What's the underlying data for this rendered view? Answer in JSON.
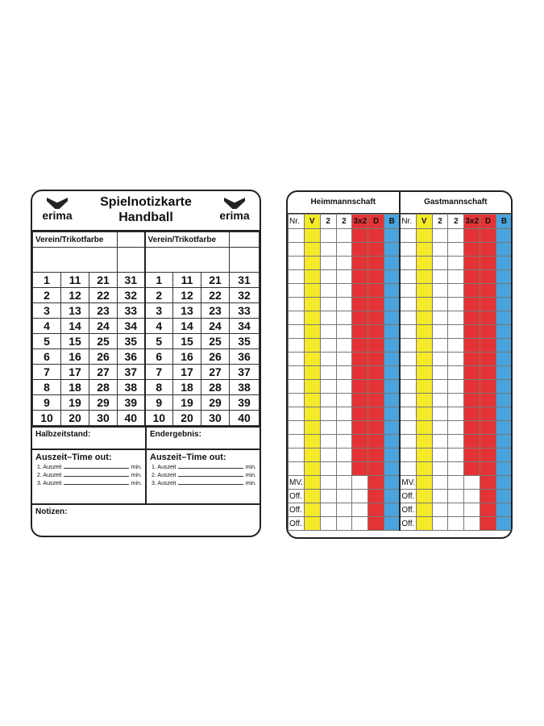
{
  "left_card": {
    "title_line1": "Spielnotizkarte",
    "title_line2": "Handball",
    "logo_text": "erima",
    "team_header": "Verein/Trikotfarbe",
    "numbers": [
      [
        1,
        11,
        21,
        31
      ],
      [
        2,
        12,
        22,
        32
      ],
      [
        3,
        13,
        23,
        33
      ],
      [
        4,
        14,
        24,
        34
      ],
      [
        5,
        15,
        25,
        35
      ],
      [
        6,
        16,
        26,
        36
      ],
      [
        7,
        17,
        27,
        37
      ],
      [
        8,
        18,
        28,
        38
      ],
      [
        9,
        19,
        29,
        39
      ],
      [
        10,
        20,
        30,
        40
      ]
    ],
    "halftime_label": "Halbzeitstand:",
    "final_label": "Endergebnis:",
    "timeout_title": "Auszeit–Time out:",
    "timeouts": [
      "1. Auszeit",
      "2. Auszeit",
      "3. Auszeit"
    ],
    "min_label": "min.",
    "notes_label": "Notizen:"
  },
  "right_card": {
    "home_title": "Heimmannschaft",
    "guest_title": "Gastmannschaft",
    "columns": [
      "Nr.",
      "V",
      "2",
      "2",
      "3x2",
      "D",
      "B"
    ],
    "column_colors": {
      "V": "#f5e92a",
      "3x2": "#e53335",
      "D": "#e53335",
      "B": "#4aa3dc"
    },
    "player_rows": 18,
    "official_rows": [
      "MV.",
      "Off.",
      "Off.",
      "Off."
    ]
  }
}
